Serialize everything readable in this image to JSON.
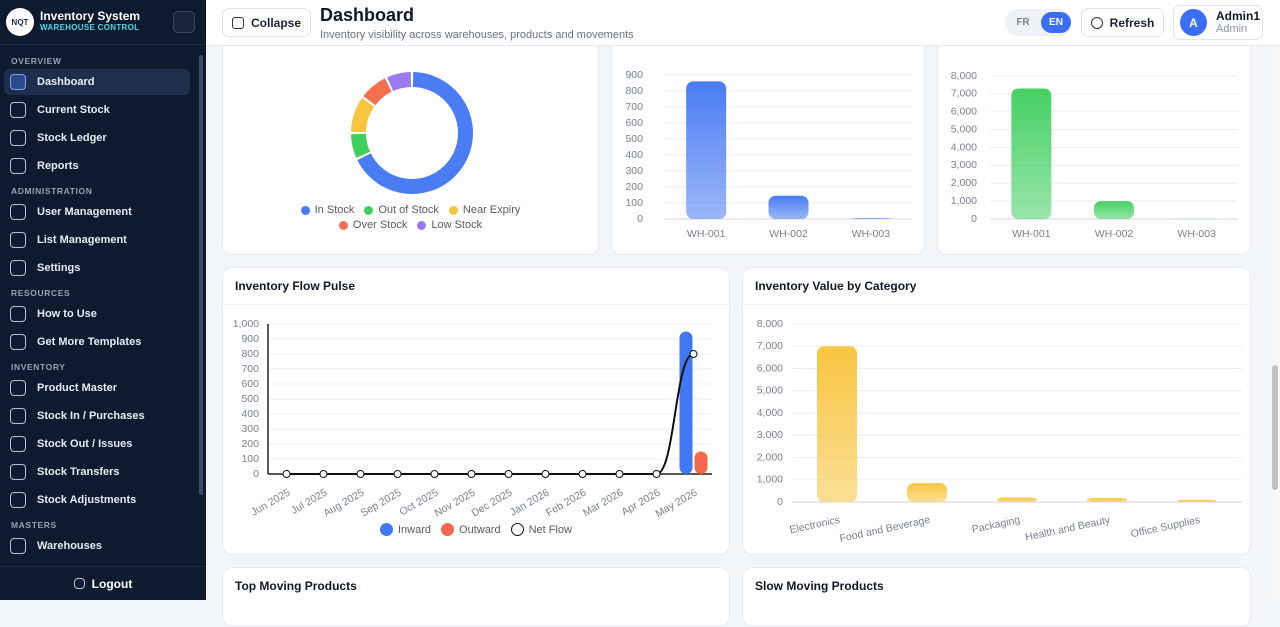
{
  "sidebar": {
    "brand": {
      "logo": "NQT",
      "title": "Inventory System",
      "subtitle": "WAREHOUSE CONTROL"
    },
    "sections": [
      {
        "title": "OVERVIEW",
        "items": [
          "Dashboard",
          "Current Stock",
          "Stock Ledger",
          "Reports"
        ]
      },
      {
        "title": "ADMINISTRATION",
        "items": [
          "User Management",
          "List Management",
          "Settings"
        ]
      },
      {
        "title": "RESOURCES",
        "items": [
          "How to Use",
          "Get More Templates"
        ]
      },
      {
        "title": "INVENTORY",
        "items": [
          "Product Master",
          "Stock In / Purchases",
          "Stock Out / Issues",
          "Stock Transfers",
          "Stock Adjustments"
        ]
      },
      {
        "title": "MASTERS",
        "items": [
          "Warehouses"
        ]
      }
    ],
    "logout": "Logout"
  },
  "header": {
    "collapse": "Collapse",
    "title": "Dashboard",
    "subtitle": "Inventory visibility across warehouses, products and movements",
    "languages": [
      "FR",
      "EN"
    ],
    "refresh": "Refresh",
    "user": {
      "initial": "A",
      "name": "Admin1",
      "role": "Admin"
    }
  },
  "chart_data": [
    {
      "type": "pie",
      "donut": true,
      "categories": [
        "In Stock",
        "Out of Stock",
        "Near Expiry",
        "Over Stock",
        "Low Stock"
      ],
      "values": [
        68,
        7,
        10,
        8,
        7
      ],
      "colors": [
        "#4a7cf3",
        "#3ecf5c",
        "#f8c540",
        "#f6704f",
        "#9b7af0"
      ]
    },
    {
      "type": "bar",
      "categories": [
        "WH-001",
        "WH-002",
        "WH-003"
      ],
      "values": [
        860,
        145,
        5
      ],
      "color": "#4a7cf3",
      "ylim": [
        0,
        900
      ],
      "yticks": [
        0,
        100,
        200,
        300,
        400,
        500,
        600,
        700,
        800,
        900
      ],
      "grid": true
    },
    {
      "type": "bar",
      "categories": [
        "WH-001",
        "WH-002",
        "WH-003"
      ],
      "values": [
        7300,
        1000,
        10
      ],
      "color": "#45d063",
      "ylim": [
        0,
        8000
      ],
      "yticks": [
        0,
        {
          "value": 1000,
          "label": "1,000"
        },
        {
          "value": 2000,
          "label": "2,000"
        },
        {
          "value": 3000,
          "label": "3,000"
        },
        {
          "value": 4000,
          "label": "4,000"
        },
        {
          "value": 5000,
          "label": "5,000"
        },
        {
          "value": 6000,
          "label": "6,000"
        },
        {
          "value": 7000,
          "label": "7,000"
        },
        {
          "value": 8000,
          "label": "8,000"
        }
      ],
      "grid": true
    },
    {
      "type": "combo",
      "title": "Inventory Flow Pulse",
      "categories": [
        "Jun 2025",
        "Jul 2025",
        "Aug 2025",
        "Sep 2025",
        "Oct 2025",
        "Nov 2025",
        "Dec 2025",
        "Jan 2026",
        "Feb 2026",
        "Mar 2026",
        "Apr 2026",
        "May 2026"
      ],
      "series": [
        {
          "name": "Inward",
          "type": "bar",
          "color": "#3f78f2",
          "values": [
            0,
            0,
            0,
            0,
            0,
            0,
            0,
            0,
            0,
            0,
            0,
            950
          ]
        },
        {
          "name": "Outward",
          "type": "bar",
          "color": "#f4694d",
          "values": [
            0,
            0,
            0,
            0,
            0,
            0,
            0,
            0,
            0,
            0,
            0,
            150
          ]
        },
        {
          "name": "Net Flow",
          "type": "line",
          "color": "#111111",
          "values": [
            0,
            0,
            0,
            0,
            0,
            0,
            0,
            0,
            0,
            0,
            0,
            800
          ]
        }
      ],
      "ylim": [
        0,
        1000
      ],
      "yticks": [
        0,
        100,
        200,
        300,
        400,
        500,
        600,
        700,
        800,
        900,
        {
          "value": 1000,
          "label": "1,000"
        }
      ],
      "grid": true
    },
    {
      "type": "bar",
      "title": "Inventory Value by Category",
      "categories": [
        "Electronics",
        "Food and Beverage",
        "Packaging",
        "Health and Beauty",
        "Office Supplies"
      ],
      "values": [
        7000,
        850,
        200,
        180,
        100
      ],
      "color": "#f8c540",
      "ylim": [
        0,
        8000
      ],
      "yticks": [
        0,
        {
          "value": 1000,
          "label": "1,000"
        },
        {
          "value": 2000,
          "label": "2,000"
        },
        {
          "value": 3000,
          "label": "3,000"
        },
        {
          "value": 4000,
          "label": "4,000"
        },
        {
          "value": 5000,
          "label": "5,000"
        },
        {
          "value": 6000,
          "label": "6,000"
        },
        {
          "value": 7000,
          "label": "7,000"
        },
        {
          "value": 8000,
          "label": "8,000"
        }
      ],
      "grid": true
    }
  ],
  "cards": [
    "Top Moving Products",
    "Slow Moving Products"
  ]
}
